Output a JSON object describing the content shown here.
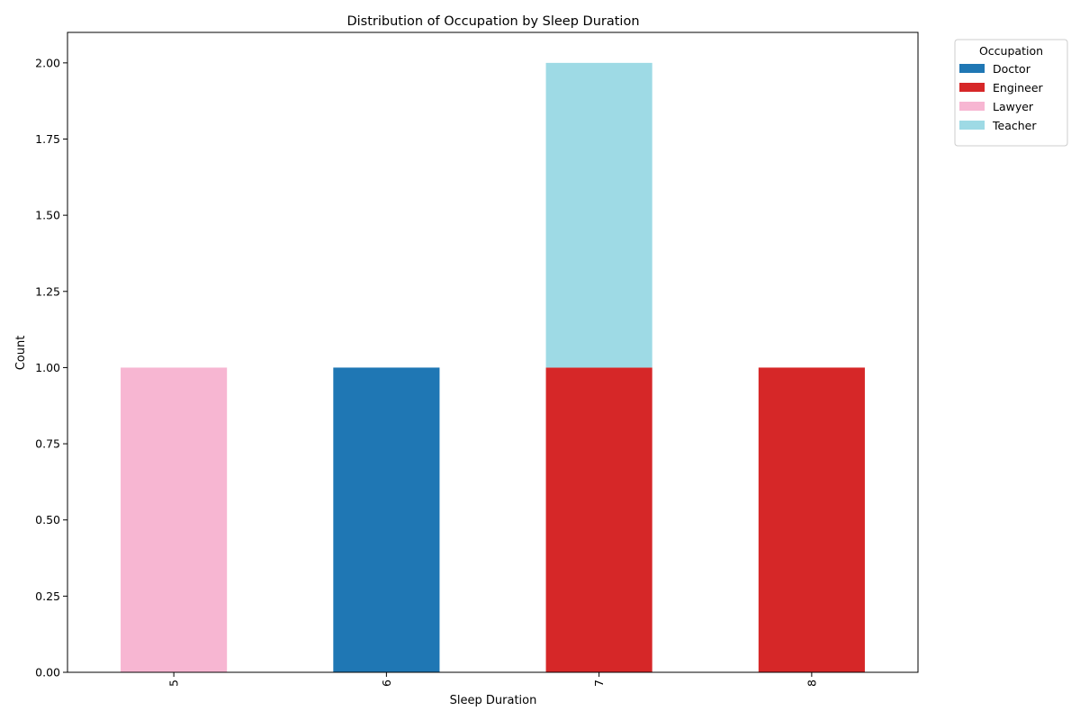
{
  "chart_data": {
    "type": "bar",
    "stacked": true,
    "title": "Distribution of Occupation by Sleep Duration",
    "xlabel": "Sleep Duration",
    "ylabel": "Count",
    "categories": [
      "5",
      "6",
      "7",
      "8"
    ],
    "series": [
      {
        "name": "Doctor",
        "color": "#1f77b4",
        "values": [
          0,
          1,
          0,
          0
        ]
      },
      {
        "name": "Engineer",
        "color": "#d62728",
        "values": [
          0,
          0,
          1,
          1
        ]
      },
      {
        "name": "Lawyer",
        "color": "#f7b6d2",
        "values": [
          1,
          0,
          0,
          0
        ]
      },
      {
        "name": "Teacher",
        "color": "#9edae5",
        "values": [
          0,
          0,
          1,
          0
        ]
      }
    ],
    "ylim": [
      0,
      2.1
    ],
    "yticks": [
      "0.00",
      "0.25",
      "0.50",
      "0.75",
      "1.00",
      "1.25",
      "1.50",
      "1.75",
      "2.00"
    ],
    "legend": {
      "title": "Occupation",
      "placement": "outside top-right"
    },
    "grid": false
  }
}
